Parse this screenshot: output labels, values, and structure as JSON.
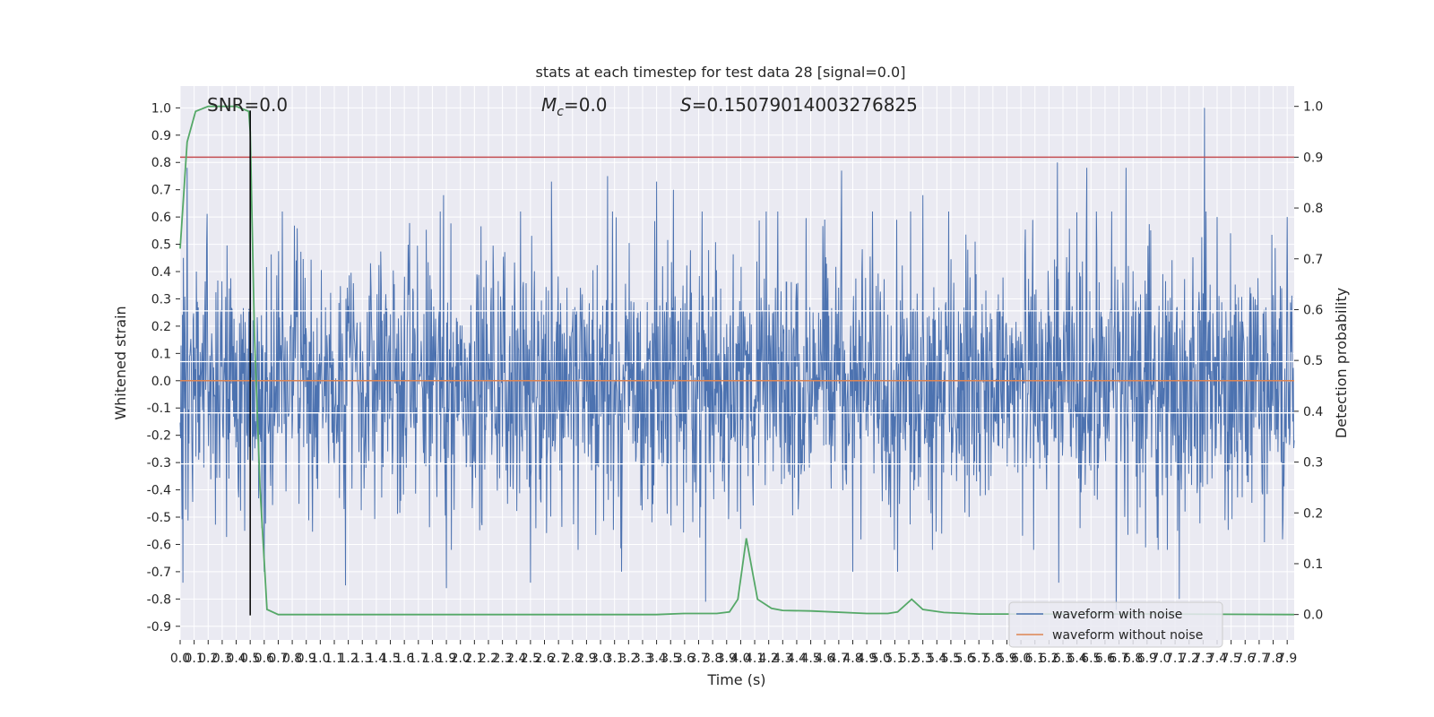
{
  "chart_data": {
    "type": "line",
    "title": "stats at each timestep for test data 28 [signal=0.0]",
    "xlabel": "Time (s)",
    "ylabel": "Whitened strain",
    "y2label": "Detection probability",
    "xlim": [
      0.0,
      7.95
    ],
    "ylim": [
      -0.95,
      1.08
    ],
    "y2lim": [
      -0.05,
      1.04
    ],
    "xticks": [
      0.0,
      0.1,
      0.2,
      0.3,
      0.4,
      0.5,
      0.6,
      0.7,
      0.8,
      0.9,
      1.0,
      1.1,
      1.2,
      1.3,
      1.4,
      1.5,
      1.6,
      1.7,
      1.8,
      1.9,
      2.0,
      2.1,
      2.2,
      2.3,
      2.4,
      2.5,
      2.6,
      2.7,
      2.8,
      2.9,
      3.0,
      3.1,
      3.2,
      3.3,
      3.4,
      3.5,
      3.6,
      3.7,
      3.8,
      3.9,
      4.0,
      4.1,
      4.2,
      4.3,
      4.4,
      4.5,
      4.6,
      4.7,
      4.8,
      4.9,
      5.0,
      5.1,
      5.2,
      5.3,
      5.4,
      5.5,
      5.6,
      5.7,
      5.8,
      5.9,
      6.0,
      6.1,
      6.2,
      6.3,
      6.4,
      6.5,
      6.6,
      6.7,
      6.8,
      6.9,
      7.0,
      7.1,
      7.2,
      7.3,
      7.4,
      7.5,
      7.6,
      7.7,
      7.8,
      7.9
    ],
    "yticks": [
      -0.9,
      -0.8,
      -0.7,
      -0.6,
      -0.5,
      -0.4,
      -0.3,
      -0.2,
      -0.1,
      0.0,
      0.1,
      0.2,
      0.3,
      0.4,
      0.5,
      0.6,
      0.7,
      0.8,
      0.9,
      1.0
    ],
    "y2ticks": [
      0.0,
      0.1,
      0.2,
      0.3,
      0.4,
      0.5,
      0.6,
      0.7,
      0.8,
      0.9,
      1.0
    ],
    "grid": true,
    "legend_position": "lower-right",
    "annotations": {
      "snr": "SNR=0.0",
      "mc_symbol": "M",
      "mc_subscript": "c",
      "mc_value": "=0.0",
      "s_symbol": "S",
      "s_value": "=0.15079014003276825"
    },
    "series": [
      {
        "name": "waveform with noise",
        "axis": "left",
        "color": "#4c72b0",
        "style": "dense-noise",
        "typical_amplitude": 0.3,
        "max": 1.0,
        "min": -0.85,
        "peaks": [
          [
            0.05,
            0.78
          ],
          [
            0.5,
            0.99
          ],
          [
            1.88,
            0.68
          ],
          [
            2.65,
            0.73
          ],
          [
            3.05,
            0.75
          ],
          [
            3.4,
            0.73
          ],
          [
            3.52,
            0.7
          ],
          [
            4.72,
            0.77
          ],
          [
            5.3,
            0.68
          ],
          [
            6.26,
            0.8
          ],
          [
            6.47,
            0.78
          ],
          [
            6.75,
            0.78
          ],
          [
            7.31,
            1.0
          ],
          [
            7.4,
            0.6
          ],
          [
            7.9,
            0.6
          ]
        ],
        "troughs": [
          [
            0.02,
            -0.74
          ],
          [
            0.6,
            -0.7
          ],
          [
            1.18,
            -0.75
          ],
          [
            1.9,
            -0.76
          ],
          [
            2.5,
            -0.74
          ],
          [
            3.15,
            -0.7
          ],
          [
            3.75,
            -0.81
          ],
          [
            4.8,
            -0.7
          ],
          [
            5.12,
            -0.7
          ],
          [
            6.27,
            -0.74
          ],
          [
            6.68,
            -0.84
          ],
          [
            7.13,
            -0.8
          ]
        ]
      },
      {
        "name": "waveform without noise",
        "axis": "left",
        "color": "#dd8452",
        "x": [
          0.0,
          7.95
        ],
        "y": [
          0.0,
          0.0
        ]
      },
      {
        "name": "",
        "axis": "right",
        "color": "#55a868",
        "x": [
          0.0,
          0.05,
          0.11,
          0.2,
          0.3,
          0.4,
          0.49,
          0.5,
          0.53,
          0.57,
          0.62,
          0.7,
          1.0,
          2.0,
          3.0,
          3.4,
          3.6,
          3.83,
          3.92,
          3.98,
          4.04,
          4.12,
          4.22,
          4.3,
          4.5,
          4.9,
          5.05,
          5.12,
          5.22,
          5.3,
          5.45,
          5.7,
          6.0,
          7.0,
          7.95
        ],
        "y": [
          0.72,
          0.93,
          0.99,
          1.0,
          1.0,
          1.0,
          0.99,
          0.95,
          0.55,
          0.25,
          0.01,
          0.0,
          0.0,
          0.0,
          0.0,
          0.0,
          0.002,
          0.002,
          0.005,
          0.03,
          0.15,
          0.03,
          0.012,
          0.008,
          0.007,
          0.002,
          0.002,
          0.005,
          0.03,
          0.01,
          0.004,
          0.001,
          0.001,
          0.001,
          0.0
        ]
      }
    ],
    "hlines": [
      {
        "axis": "right",
        "y": 0.9,
        "color": "#c44e52"
      }
    ],
    "vlines": [
      {
        "x": 0.5,
        "y_from": -0.86,
        "y_to": 0.99,
        "axis": "left",
        "color": "#000000"
      }
    ],
    "white_overlay_lines": [
      0.256,
      0.07,
      -0.118,
      -0.305
    ]
  }
}
